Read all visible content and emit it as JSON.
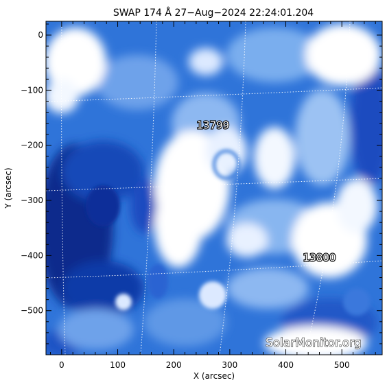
{
  "title": "SWAP 174 Å 27−Aug−2024 22:24:01.204",
  "x_axis": {
    "label": "X (arcsec)",
    "range": [
      -28,
      572
    ],
    "ticks": [
      0,
      100,
      200,
      300,
      400,
      500
    ],
    "tick_labels": [
      "0",
      "100",
      "200",
      "300",
      "400",
      "500"
    ]
  },
  "y_axis": {
    "label": "Y (arcsec)",
    "range": [
      -580,
      25
    ],
    "ticks": [
      0,
      -100,
      -200,
      -300,
      -400,
      -500
    ],
    "tick_labels": [
      "0",
      "−100",
      "−200",
      "−300",
      "−400",
      "−500"
    ]
  },
  "regions": [
    {
      "number": "13799",
      "x": 270,
      "y": -170
    },
    {
      "number": "13800",
      "x": 460,
      "y": -410
    }
  ],
  "watermark": "SolarMonitor.org",
  "colors": {
    "dark_blue": "#0a2a8c",
    "mid_blue": "#2f74d9",
    "light_blue": "#9cc2f3",
    "white": "#ffffff"
  }
}
